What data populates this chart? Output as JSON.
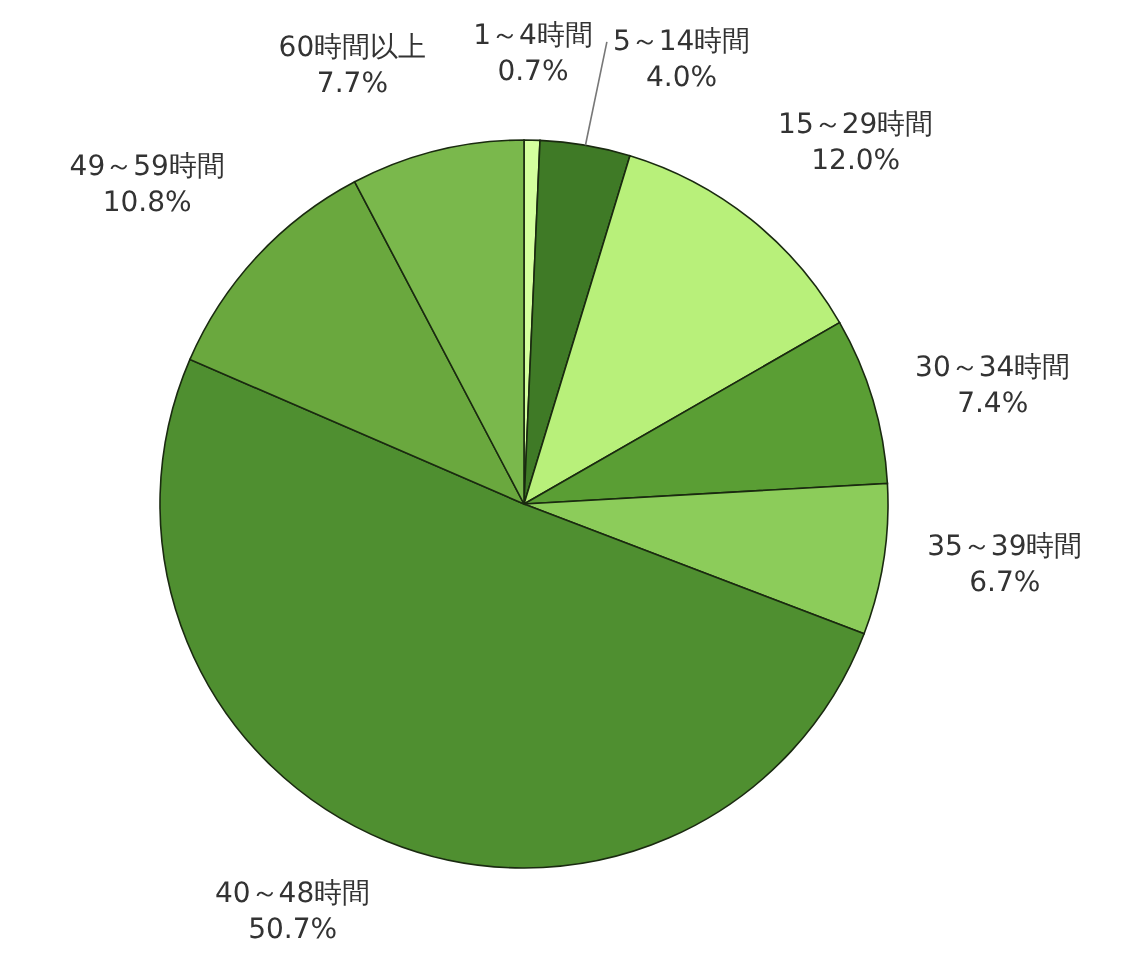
{
  "chart_data": {
    "type": "pie",
    "categories": [
      "1～4時間",
      "5～14時間",
      "15～29時間",
      "30～34時間",
      "35～39時間",
      "40～48時間",
      "49～59時間",
      "60時間以上"
    ],
    "values": [
      0.7,
      4.0,
      12.0,
      7.4,
      6.7,
      50.7,
      10.8,
      7.7
    ],
    "value_labels": [
      "0.7%",
      "4.0%",
      "12.0%",
      "7.4%",
      "6.7%",
      "50.7%",
      "10.8%",
      "7.7%"
    ],
    "colors": [
      "#d4ff9e",
      "#3f7a26",
      "#b8f07a",
      "#5a9e34",
      "#8ccc5a",
      "#4f8f30",
      "#6aa83e",
      "#7ab84c"
    ]
  }
}
